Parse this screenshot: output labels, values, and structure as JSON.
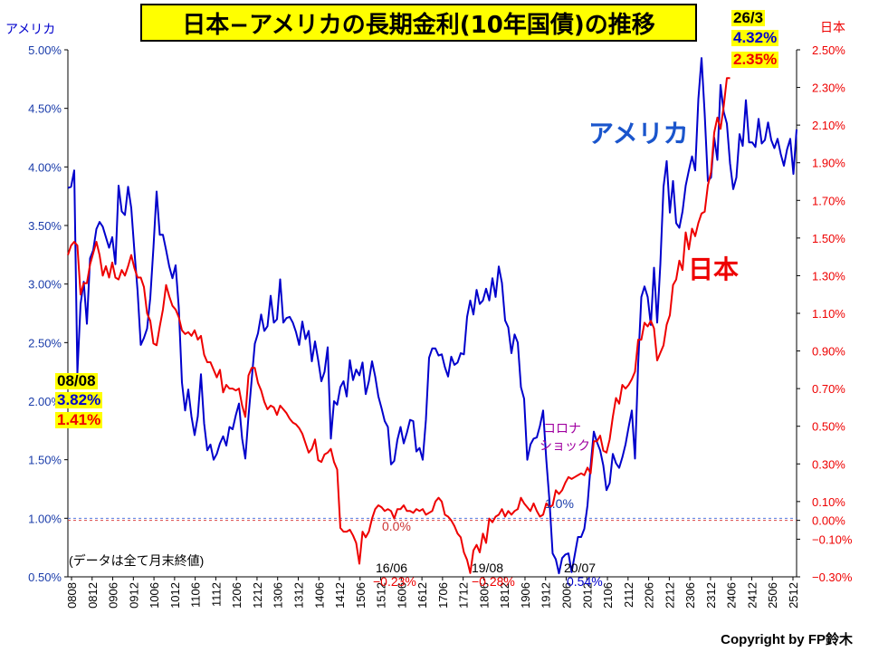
{
  "chart_data": {
    "type": "line",
    "title": "日本−アメリカの長期金利(10年国債)の推移",
    "left_axis_label": "アメリカ",
    "right_axis_label": "日本",
    "left_axis_ticks": [
      "5.00%",
      "4.50%",
      "4.00%",
      "3.50%",
      "3.00%",
      "2.50%",
      "2.00%",
      "1.50%",
      "1.00%",
      "0.50%"
    ],
    "right_axis_ticks": [
      "2.50%",
      "2.30%",
      "2.10%",
      "1.90%",
      "1.70%",
      "1.50%",
      "1.30%",
      "1.10%",
      "0.90%",
      "0.70%",
      "0.50%",
      "0.30%",
      "0.10%",
      "0.00%",
      "−0.10%",
      "−0.30%"
    ],
    "left_ylim": [
      0.5,
      5.0
    ],
    "right_ylim": [
      -0.3,
      2.5
    ],
    "x_tick_labels": [
      "0808",
      "0812",
      "0906",
      "0912",
      "1006",
      "1012",
      "1106",
      "1112",
      "1206",
      "1212",
      "1306",
      "1312",
      "1406",
      "1412",
      "1506",
      "1512",
      "1606",
      "1612",
      "1706",
      "1712",
      "1806",
      "1812",
      "1906",
      "1912",
      "2006",
      "2012",
      "2106",
      "2112",
      "2206",
      "2212",
      "2306",
      "2312",
      "2406",
      "2412",
      "2506",
      "2512"
    ],
    "series": [
      {
        "name": "アメリカ",
        "axis": "left",
        "color": "#0000cc",
        "values": [
          3.82,
          3.83,
          3.97,
          2.24,
          2.83,
          3.02,
          2.66,
          3.22,
          3.29,
          3.47,
          3.53,
          3.49,
          3.4,
          3.31,
          3.4,
          3.17,
          3.84,
          3.62,
          3.59,
          3.83,
          3.65,
          3.28,
          2.94,
          2.48,
          2.54,
          2.62,
          2.88,
          3.31,
          3.79,
          3.42,
          3.42,
          3.29,
          3.15,
          3.05,
          3.16,
          2.8,
          2.16,
          1.92,
          2.1,
          1.87,
          1.71,
          1.87,
          2.23,
          1.81,
          1.58,
          1.63,
          1.5,
          1.55,
          1.64,
          1.7,
          1.62,
          1.78,
          1.76,
          1.88,
          1.98,
          1.68,
          1.51,
          1.87,
          2.18,
          2.49,
          2.58,
          2.74,
          2.6,
          2.64,
          2.9,
          2.67,
          2.7,
          3.04,
          2.67,
          2.71,
          2.72,
          2.67,
          2.59,
          2.48,
          2.68,
          2.53,
          2.6,
          2.34,
          2.51,
          2.35,
          2.17,
          2.25,
          2.46,
          1.68,
          2.0,
          1.97,
          2.12,
          2.17,
          2.04,
          2.35,
          2.18,
          2.27,
          2.22,
          2.33,
          2.06,
          2.17,
          2.34,
          2.21,
          2.04,
          1.94,
          1.83,
          1.78,
          1.46,
          1.49,
          1.67,
          1.78,
          1.64,
          1.73,
          1.84,
          1.83,
          1.57,
          1.6,
          1.5,
          1.84,
          2.37,
          2.45,
          2.45,
          2.39,
          2.4,
          2.29,
          2.21,
          2.38,
          2.31,
          2.33,
          2.41,
          2.4,
          2.72,
          2.86,
          2.74,
          2.95,
          2.83,
          2.86,
          2.96,
          2.86,
          3.05,
          2.89,
          3.15,
          3.01,
          2.69,
          2.63,
          2.41,
          2.57,
          2.5,
          2.12,
          2.02,
          1.5,
          1.63,
          1.68,
          1.69,
          1.79,
          1.92,
          1.5,
          1.15,
          0.7,
          0.65,
          0.53,
          0.66,
          0.69,
          0.7,
          0.54,
          0.69,
          0.84,
          0.84,
          0.91,
          1.11,
          1.45,
          1.74,
          1.65,
          1.58,
          1.45,
          1.24,
          1.3,
          1.55,
          1.47,
          1.43,
          1.52,
          1.63,
          1.78,
          1.92,
          1.51,
          2.32,
          2.89,
          2.98,
          2.89,
          2.65,
          3.14,
          2.67,
          3.17,
          3.83,
          4.05,
          3.61,
          3.88,
          3.52,
          3.48,
          3.62,
          3.84,
          3.97,
          4.09,
          3.97,
          4.58,
          4.93,
          4.45,
          3.88,
          3.91,
          4.25,
          4.06,
          4.7,
          4.47,
          4.37,
          4.03,
          3.81,
          3.91,
          4.28,
          4.18,
          4.57,
          4.21,
          4.21,
          4.17,
          4.41,
          4.2,
          4.23,
          4.38,
          4.23,
          4.16,
          4.24,
          4.11,
          4.01,
          4.15,
          4.24,
          3.94,
          4.32
        ]
      },
      {
        "name": "日本",
        "axis": "right",
        "color": "#ee0000",
        "values": [
          1.41,
          1.46,
          1.48,
          1.46,
          1.2,
          1.26,
          1.26,
          1.36,
          1.42,
          1.48,
          1.41,
          1.3,
          1.35,
          1.29,
          1.37,
          1.29,
          1.28,
          1.33,
          1.3,
          1.35,
          1.41,
          1.34,
          1.29,
          1.29,
          1.24,
          1.1,
          1.06,
          0.94,
          0.93,
          1.03,
          1.12,
          1.25,
          1.19,
          1.14,
          1.12,
          1.08,
          1.01,
          0.99,
          1.0,
          0.98,
          1.01,
          0.96,
          0.98,
          0.88,
          0.84,
          0.84,
          0.8,
          0.76,
          0.8,
          0.68,
          0.72,
          0.7,
          0.7,
          0.69,
          0.7,
          0.61,
          0.55,
          0.77,
          0.81,
          0.81,
          0.73,
          0.69,
          0.63,
          0.59,
          0.61,
          0.6,
          0.56,
          0.61,
          0.59,
          0.57,
          0.54,
          0.52,
          0.51,
          0.49,
          0.46,
          0.41,
          0.36,
          0.38,
          0.43,
          0.32,
          0.31,
          0.35,
          0.36,
          0.38,
          0.31,
          0.27,
          -0.04,
          -0.06,
          -0.06,
          -0.05,
          -0.08,
          -0.12,
          -0.23,
          -0.06,
          -0.09,
          -0.06,
          0.01,
          0.06,
          0.08,
          0.07,
          0.05,
          0.06,
          0.05,
          0.01,
          0.06,
          0.06,
          0.08,
          0.05,
          0.05,
          0.04,
          0.06,
          0.05,
          0.06,
          0.03,
          0.04,
          0.05,
          0.1,
          0.12,
          0.1,
          0.03,
          0.02,
          0.0,
          -0.03,
          -0.07,
          -0.09,
          -0.17,
          -0.21,
          -0.28,
          -0.16,
          -0.13,
          -0.17,
          -0.07,
          -0.12,
          0.01,
          -0.01,
          0.02,
          0.03,
          0.06,
          0.02,
          0.05,
          0.03,
          0.05,
          0.06,
          0.12,
          0.09,
          0.07,
          0.05,
          0.09,
          0.05,
          0.02,
          0.03,
          0.09,
          0.07,
          0.08,
          0.16,
          0.14,
          0.16,
          0.2,
          0.23,
          0.22,
          0.23,
          0.24,
          0.25,
          0.24,
          0.28,
          0.25,
          0.42,
          0.42,
          0.45,
          0.37,
          0.36,
          0.43,
          0.55,
          0.65,
          0.62,
          0.72,
          0.7,
          0.72,
          0.75,
          0.79,
          0.96,
          0.96,
          1.05,
          1.03,
          1.06,
          1.02,
          0.85,
          0.89,
          0.93,
          1.04,
          1.09,
          1.25,
          1.28,
          1.38,
          1.33,
          1.53,
          1.44,
          1.55,
          1.51,
          1.58,
          1.63,
          1.64,
          1.78,
          1.85,
          2.06,
          2.14,
          2.08,
          2.2,
          2.35,
          2.35
        ]
      }
    ],
    "annotations": {
      "start_date": "08/08",
      "start_us": "3.82%",
      "start_jp": "1.41%",
      "end_date": "26/3",
      "end_us": "4.32%",
      "end_jp": "2.35%",
      "us_series_label": "アメリカ",
      "jp_series_label": "日本",
      "corona_line1": "コロナ",
      "corona_line2": "ショック",
      "us_ref_label": "1.0%",
      "jp_ref_label": "0.0%",
      "note": "(データは全て月末終値)",
      "low1_date": "16/06",
      "low1_value": "−0.23%",
      "low2_date": "19/08",
      "low2_value": "−0.28%",
      "low3_date": "20/07",
      "low3_value": "0.54%"
    },
    "grid": false,
    "legend": "none"
  },
  "copyright": "Copyright by FP鈴木"
}
